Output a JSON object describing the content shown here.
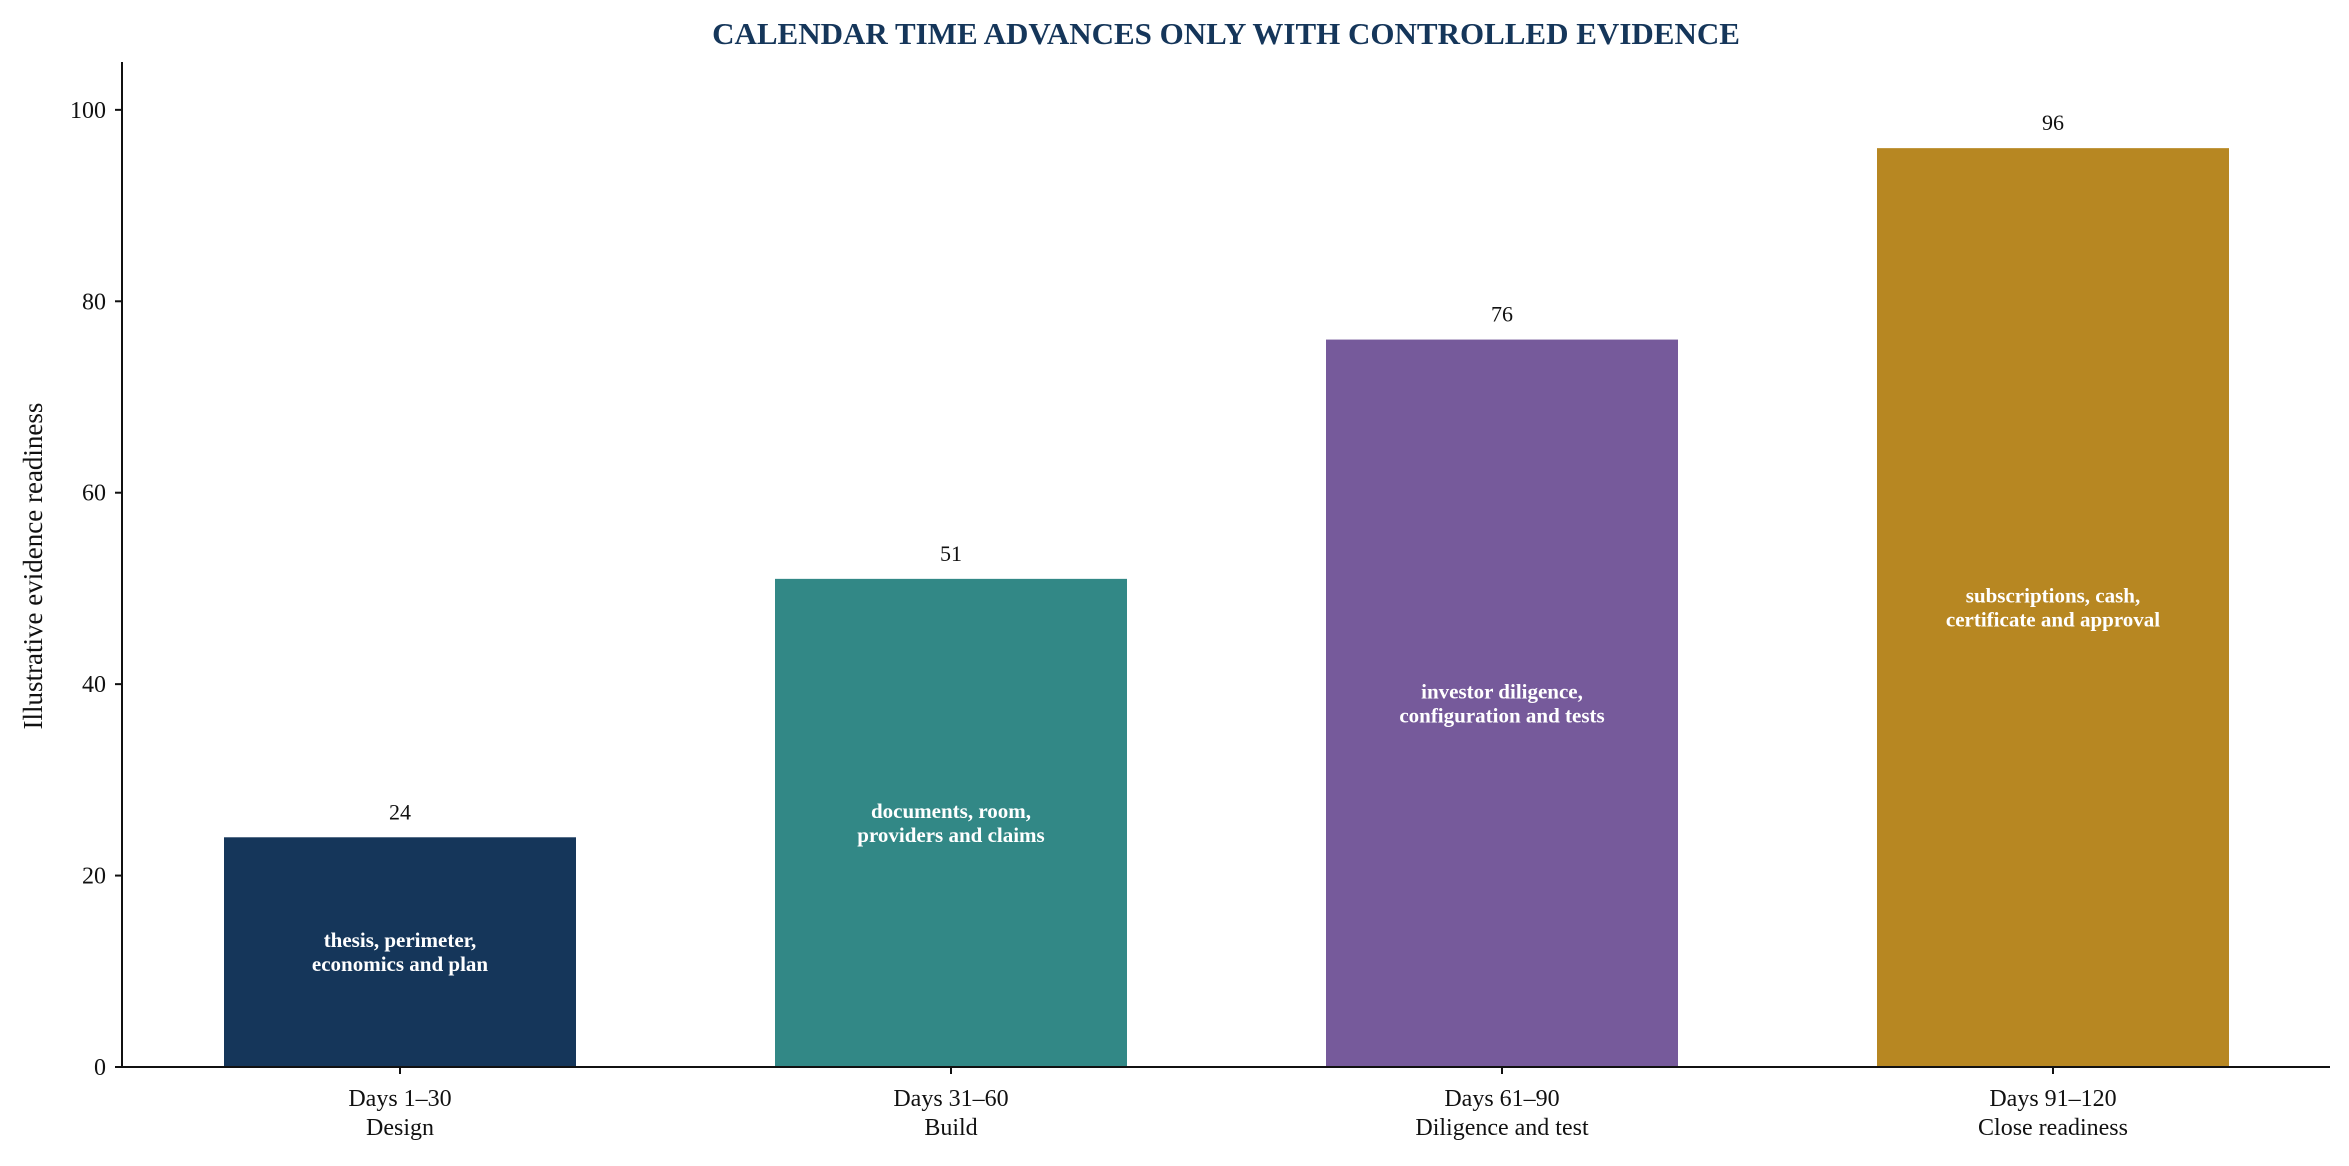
{
  "chart_data": {
    "type": "bar",
    "title": "CALENDAR TIME ADVANCES ONLY WITH CONTROLLED EVIDENCE",
    "ylabel": "Illustrative evidence readiness",
    "xlabel": "",
    "ylim": [
      0,
      105
    ],
    "yticks": [
      0,
      20,
      40,
      60,
      80,
      100
    ],
    "grid": false,
    "categories": [
      [
        "Days 1–30",
        "Design"
      ],
      [
        "Days 31–60",
        "Build"
      ],
      [
        "Days 61–90",
        "Diligence and test"
      ],
      [
        "Days 91–120",
        "Close readiness"
      ]
    ],
    "values": [
      24,
      51,
      76,
      96
    ],
    "annotations": [
      [
        "thesis, perimeter,",
        "economics and plan"
      ],
      [
        "documents, room,",
        "providers and claims"
      ],
      [
        "investor diligence,",
        "configuration and tests"
      ],
      [
        "subscriptions, cash,",
        "certificate and approval"
      ]
    ],
    "colors": [
      "#15365a",
      "#328886",
      "#765a9b",
      "#b78722"
    ],
    "title_color": "#15365a"
  }
}
